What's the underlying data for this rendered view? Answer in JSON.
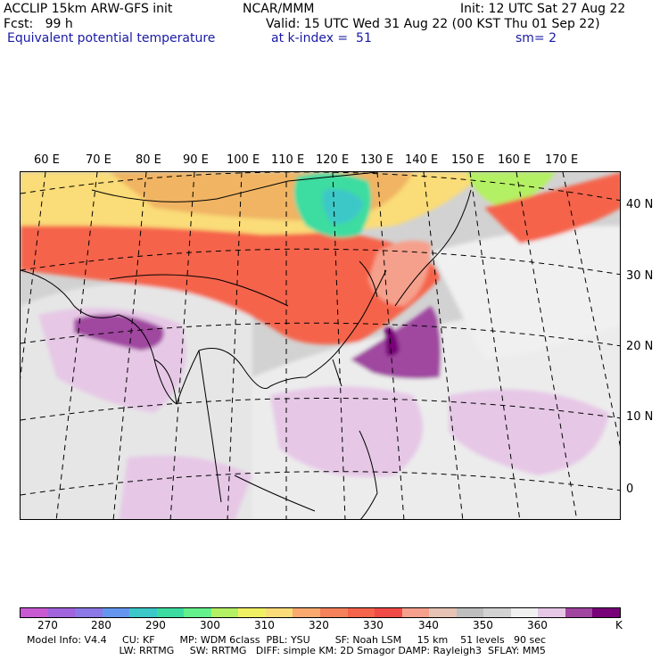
{
  "header": {
    "line1_left": "ACCLIP 15km ARW-GFS init",
    "line1_center": "NCAR/MMM",
    "line1_right": "Init: 12 UTC Sat 27 Aug 22",
    "line2_left": "Fcst:   99 h",
    "line2_right": "Valid: 15 UTC Wed 31 Aug 22 (00 KST Thu 01 Sep 22)",
    "line3_left": "Equivalent potential temperature",
    "line3_mid": "at k-index =  51",
    "line3_right": "sm= 2"
  },
  "map": {
    "longitude_labels": [
      "60 E",
      "70 E",
      "80 E",
      "90 E",
      "100 E",
      "110 E",
      "120 E",
      "130 E",
      "140 E",
      "150 E",
      "160 E",
      "170 E"
    ],
    "latitude_labels": [
      "40 N",
      "30 N",
      "20 N",
      "10 N",
      "0"
    ]
  },
  "colorbar": {
    "colors": [
      "#c85ad2",
      "#a064dc",
      "#8c78e6",
      "#6496f0",
      "#3cc8c8",
      "#3cdca0",
      "#64f08c",
      "#b4f064",
      "#f0f064",
      "#fadc78",
      "#faaa6e",
      "#f5825a",
      "#f5644b",
      "#f04b46",
      "#f5a08c",
      "#e6c3b4",
      "#bebebe",
      "#d2d2d2",
      "#f0f0f0",
      "#e6c8e6",
      "#a046a0",
      "#780078"
    ],
    "labels": [
      "270",
      "280",
      "290",
      "300",
      "310",
      "320",
      "330",
      "340",
      "350",
      "360",
      "K"
    ]
  },
  "model_info": {
    "line1": "Model Info: V4.4     CU: KF        MP: WDM 6class  PBL: YSU        SF: Noah LSM     15 km    51 levels   90 sec",
    "line2": "     LW: RRTMG     SW: RRTMG   DIFF: simple KM: 2D Smagor DAMP: Rayleigh3  SFLAY: MM5"
  }
}
